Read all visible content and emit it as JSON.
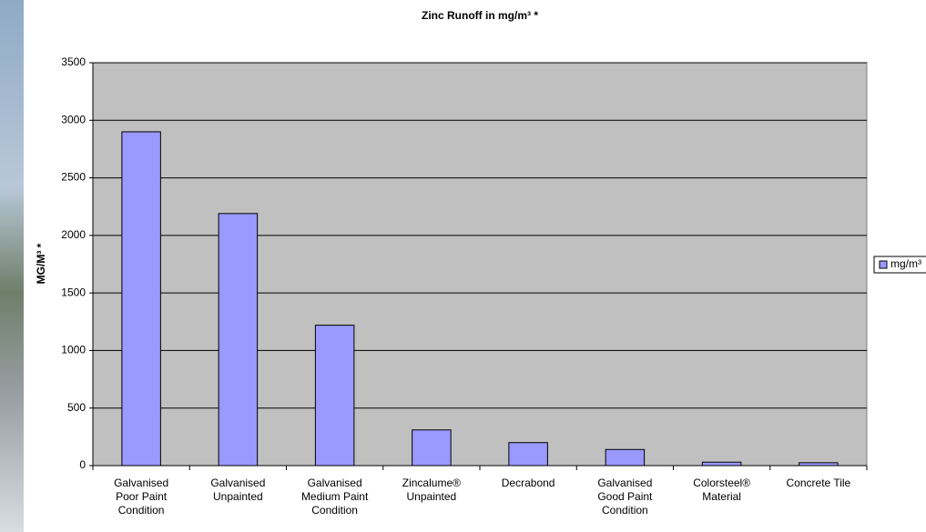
{
  "chart_data": {
    "type": "bar",
    "title": "Zinc Runoff in mg/m³ *",
    "y_label": "MG/M³ *",
    "categories": [
      "Galvanised Poor Paint Condition",
      "Galvanised Unpainted",
      "Galvanised Medium Paint Condition",
      "Zincalume® Unpainted",
      "Decrabond",
      "Galvanised Good Paint Condition",
      "Colorsteel® Material",
      "Concrete Tile"
    ],
    "series": [
      {
        "name": "mg/m³",
        "color": "#9999ff",
        "values": [
          2900,
          2190,
          1220,
          310,
          200,
          140,
          30,
          25
        ]
      }
    ],
    "ylim": [
      0,
      3500
    ],
    "yticks": [
      0,
      500,
      1000,
      1500,
      2000,
      2500,
      3000,
      3500
    ],
    "grid": true,
    "legend": "right"
  }
}
